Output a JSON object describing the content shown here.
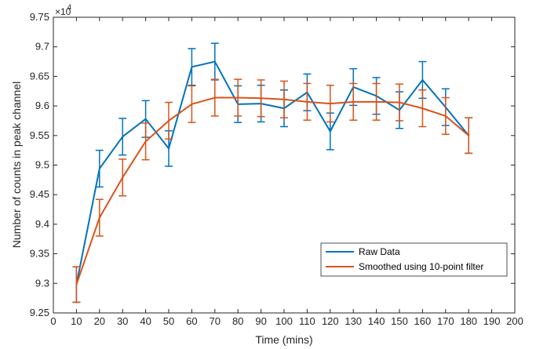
{
  "chart_data": {
    "type": "line",
    "title": "",
    "xlabel": "Time (mins)",
    "ylabel": "Number of counts in peak channel",
    "xlim": [
      0,
      200
    ],
    "ylim": [
      9.25,
      9.75
    ],
    "x_ticks": [
      0,
      10,
      20,
      30,
      40,
      50,
      60,
      70,
      80,
      90,
      100,
      110,
      120,
      130,
      140,
      150,
      160,
      170,
      180,
      190,
      200
    ],
    "y_ticks": [
      9.25,
      9.3,
      9.35,
      9.4,
      9.45,
      9.5,
      9.55,
      9.6,
      9.65,
      9.7,
      9.75
    ],
    "y_tick_labels": [
      "9.25",
      "9.3",
      "9.35",
      "9.4",
      "9.45",
      "9.5",
      "9.55",
      "9.6",
      "9.65",
      "9.7",
      "9.75"
    ],
    "y_multiplier_base": "×10",
    "y_multiplier_exp": "4",
    "grid": false,
    "legend_position": "bottom-right",
    "series": [
      {
        "name": "Raw Data",
        "color": "#0072BD",
        "x": [
          10,
          20,
          30,
          40,
          50,
          60,
          70,
          80,
          90,
          100,
          110,
          120,
          130,
          140,
          150,
          160,
          170,
          180
        ],
        "y": [
          9.298,
          9.494,
          9.548,
          9.578,
          9.528,
          9.666,
          9.675,
          9.603,
          9.604,
          9.596,
          9.623,
          9.557,
          9.632,
          9.617,
          9.593,
          9.644,
          9.598,
          9.55
        ],
        "err": [
          0.03,
          0.031,
          0.031,
          0.031,
          0.03,
          0.031,
          0.031,
          0.031,
          0.031,
          0.031,
          0.031,
          0.031,
          0.031,
          0.031,
          0.031,
          0.031,
          0.031,
          0.03
        ]
      },
      {
        "name": "Smoothed using 10-point filter",
        "color": "#D95319",
        "x": [
          10,
          20,
          30,
          40,
          50,
          60,
          70,
          80,
          90,
          100,
          110,
          120,
          130,
          140,
          150,
          160,
          170,
          180
        ],
        "y": [
          9.298,
          9.411,
          9.479,
          9.54,
          9.575,
          9.603,
          9.614,
          9.614,
          9.613,
          9.611,
          9.607,
          9.604,
          9.607,
          9.607,
          9.606,
          9.596,
          9.583,
          9.55
        ],
        "err": [
          0.03,
          0.031,
          0.031,
          0.031,
          0.031,
          0.031,
          0.031,
          0.031,
          0.031,
          0.031,
          0.031,
          0.031,
          0.031,
          0.031,
          0.031,
          0.031,
          0.031,
          0.03
        ]
      }
    ]
  }
}
